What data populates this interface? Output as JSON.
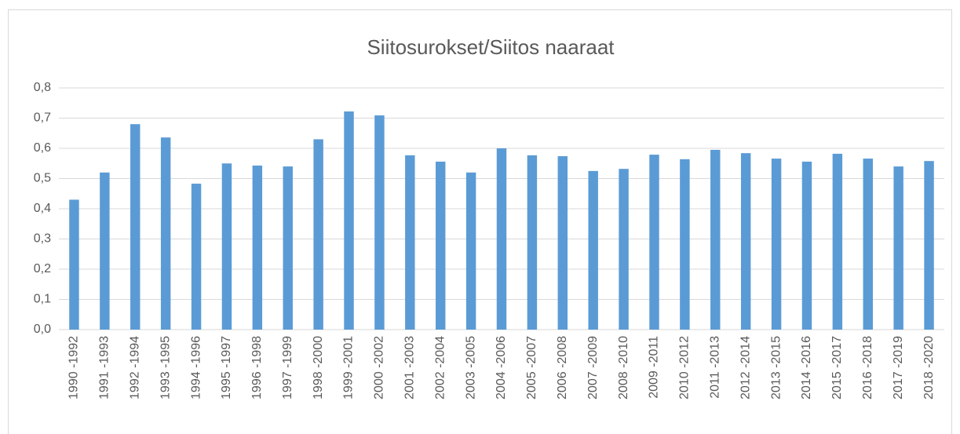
{
  "chart_data": {
    "type": "bar",
    "title": "Siitosurokset/Siitos naaraat",
    "categories": [
      "1990 -1992",
      "1991 -1993",
      "1992 -1994",
      "1993 -1995",
      "1994 -1996",
      "1995 -1997",
      "1996 -1998",
      "1997 -1999",
      "1998 -2000",
      "1999 -2001",
      "2000 -2002",
      "2001 -2003",
      "2002 -2004",
      "2003 -2005",
      "2004 -2006",
      "2005 -2007",
      "2006 -2008",
      "2007 -2009",
      "2008 -2010",
      "2009 -2011",
      "2010 -2012",
      "2011 -2013",
      "2012 -2014",
      "2013 -2015",
      "2014 -2016",
      "2015 -2017",
      "2016 -2018",
      "2017 -2019",
      "2018 -2020"
    ],
    "values": [
      0.43,
      0.52,
      0.68,
      0.636,
      0.483,
      0.55,
      0.543,
      0.54,
      0.63,
      0.722,
      0.709,
      0.577,
      0.556,
      0.52,
      0.6,
      0.577,
      0.574,
      0.525,
      0.532,
      0.579,
      0.564,
      0.595,
      0.584,
      0.566,
      0.556,
      0.582,
      0.566,
      0.54,
      0.558
    ],
    "color": "#5b9bd5",
    "ylim": [
      0,
      0.8
    ],
    "yticks": [
      {
        "value": 0,
        "label": "0,0"
      },
      {
        "value": 0.1,
        "label": "0,1"
      },
      {
        "value": 0.2,
        "label": "0,2"
      },
      {
        "value": 0.3,
        "label": "0,3"
      },
      {
        "value": 0.4,
        "label": "0,4"
      },
      {
        "value": 0.5,
        "label": "0,5"
      },
      {
        "value": 0.6,
        "label": "0,6"
      },
      {
        "value": 0.7,
        "label": "0,7"
      },
      {
        "value": 0.8,
        "label": "0,8"
      }
    ],
    "grid": true
  }
}
